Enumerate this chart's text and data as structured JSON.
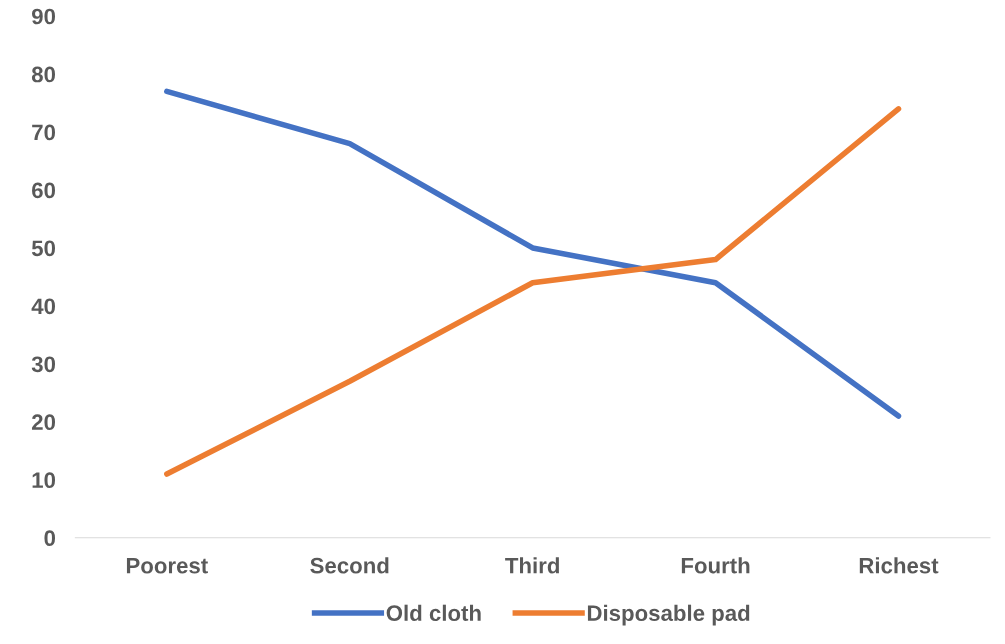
{
  "chart_data": {
    "type": "line",
    "categories": [
      "Poorest",
      "Second",
      "Third",
      "Fourth",
      "Richest"
    ],
    "series": [
      {
        "name": "Old cloth",
        "color": "#4472c4",
        "values": [
          77,
          68,
          50,
          44,
          21
        ]
      },
      {
        "name": "Disposable pad",
        "color": "#ed7d31",
        "values": [
          11,
          27,
          44,
          48,
          74
        ]
      }
    ],
    "ylim": [
      0,
      90
    ],
    "yticks": [
      0,
      10,
      20,
      30,
      40,
      50,
      60,
      70,
      80,
      90
    ],
    "grid": false,
    "legend": "bottom",
    "marker": "none",
    "line_style": "solid"
  }
}
